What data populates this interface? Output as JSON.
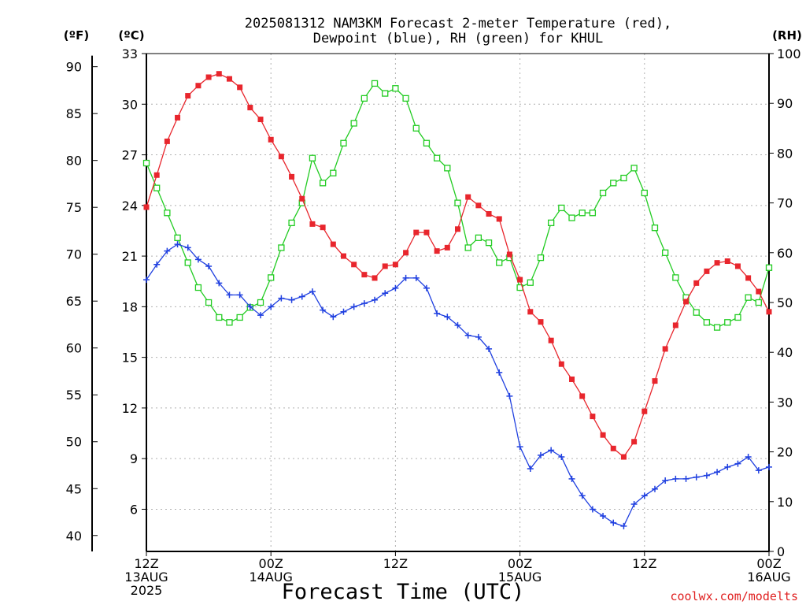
{
  "title_line1": "2025081312 NAM3KM Forecast 2-meter Temperature (red),",
  "title_line2": "Dewpoint (blue), RH (green) for KHUL",
  "units": {
    "fahrenheit": "(ºF)",
    "celsius": "(ºC)",
    "rh": "(RH)"
  },
  "credit": "coolwx.com/modelts",
  "chart_data": {
    "type": "line",
    "title": "2025081312 NAM3KM Forecast 2-meter Temperature (red), Dewpoint (blue), RH (green) for KHUL",
    "xlabel": "Forecast Time (UTC)",
    "x_start": "2025-08-13 12Z",
    "x_step_hours": 1,
    "x_range_hours": [
      0,
      60
    ],
    "x_ticks": [
      {
        "hour": 0,
        "lines": [
          "12Z",
          "13AUG",
          "2025"
        ]
      },
      {
        "hour": 12,
        "lines": [
          "00Z",
          "14AUG"
        ]
      },
      {
        "hour": 24,
        "lines": [
          "12Z"
        ]
      },
      {
        "hour": 36,
        "lines": [
          "00Z",
          "15AUG"
        ]
      },
      {
        "hour": 48,
        "lines": [
          "12Z"
        ]
      },
      {
        "hour": 60,
        "lines": [
          "00Z",
          "16AUG"
        ]
      }
    ],
    "y_celsius": {
      "label": "(ºC)",
      "range": [
        3.5,
        33
      ],
      "ticks": [
        6,
        9,
        12,
        15,
        18,
        21,
        24,
        27,
        30,
        33
      ]
    },
    "y_fahrenheit": {
      "label": "(ºF)",
      "ticks": [
        40,
        45,
        50,
        55,
        60,
        65,
        70,
        75,
        80,
        85,
        90
      ]
    },
    "y_rh": {
      "label": "(RH)",
      "range": [
        0,
        100
      ],
      "ticks": [
        0,
        10,
        20,
        30,
        40,
        50,
        60,
        70,
        80,
        90,
        100
      ]
    },
    "grid": true,
    "series": [
      {
        "key": "temperature",
        "color": "#e8262d",
        "marker": "filled-square",
        "axis": "celsius",
        "values": [
          23.9,
          25.8,
          27.8,
          29.2,
          30.5,
          31.1,
          31.6,
          31.8,
          31.5,
          31.0,
          29.8,
          29.1,
          27.9,
          26.9,
          25.7,
          24.4,
          22.9,
          22.7,
          21.7,
          21.0,
          20.5,
          19.9,
          19.7,
          20.4,
          20.5,
          21.2,
          22.4,
          22.4,
          21.3,
          21.5,
          22.6,
          24.5,
          24.0,
          23.5,
          23.2,
          21.1,
          19.6,
          17.7,
          17.1,
          16.0,
          14.6,
          13.7,
          12.7,
          11.5,
          10.4,
          9.6,
          9.1,
          10.0,
          11.8,
          13.6,
          15.5,
          16.9,
          18.3,
          19.4,
          20.1,
          20.6,
          20.7,
          20.4,
          19.7,
          18.9,
          17.7
        ]
      },
      {
        "key": "dewpoint",
        "color": "#2040e0",
        "marker": "plus",
        "axis": "celsius",
        "values": [
          19.6,
          20.5,
          21.3,
          21.7,
          21.5,
          20.8,
          20.4,
          19.4,
          18.7,
          18.7,
          18.0,
          17.5,
          18.0,
          18.5,
          18.4,
          18.6,
          18.9,
          17.8,
          17.4,
          17.7,
          18.0,
          18.2,
          18.4,
          18.8,
          19.1,
          19.7,
          19.7,
          19.1,
          17.6,
          17.4,
          16.9,
          16.3,
          16.2,
          15.5,
          14.1,
          12.7,
          9.7,
          8.4,
          9.2,
          9.5,
          9.1,
          7.8,
          6.8,
          6.0,
          5.6,
          5.2,
          5.0,
          6.3,
          6.8,
          7.2,
          7.7,
          7.8,
          7.8,
          7.9,
          8.0,
          8.2,
          8.5,
          8.7,
          9.1,
          8.3,
          8.5
        ]
      },
      {
        "key": "rh",
        "color": "#22cc22",
        "marker": "open-square",
        "axis": "rh",
        "values": [
          78,
          73,
          68,
          63,
          58,
          53,
          50,
          47,
          46,
          47,
          49,
          50,
          55,
          61,
          66,
          70,
          79,
          74,
          76,
          82,
          86,
          91,
          94,
          92,
          93,
          91,
          85,
          82,
          79,
          77,
          70,
          61,
          63,
          62,
          58,
          59,
          53,
          54,
          59,
          66,
          69,
          67,
          68,
          68,
          72,
          74,
          75,
          77,
          72,
          65,
          60,
          55,
          51,
          48,
          46,
          45,
          46,
          47,
          51,
          50,
          57
        ]
      }
    ]
  }
}
